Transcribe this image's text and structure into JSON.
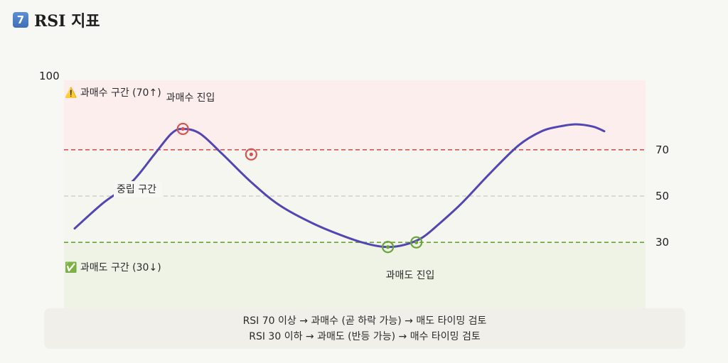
{
  "header": {
    "badge": "7",
    "title": "RSI 지표"
  },
  "chart_data": {
    "type": "line",
    "ylim": [
      0,
      100
    ],
    "top_label": "100",
    "right_ticks": [
      70,
      50,
      30
    ],
    "zones": [
      {
        "from": 70,
        "to": 100,
        "color": "#fdeeee"
      },
      {
        "from": 30,
        "to": 70,
        "color": "#f5f6f0"
      },
      {
        "from": 0,
        "to": 30,
        "color": "#eef3e6"
      }
    ],
    "reference_lines": [
      {
        "value": 70,
        "color": "#d9534f"
      },
      {
        "value": 50,
        "color": "#bdbdb5"
      },
      {
        "value": 30,
        "color": "#6aa33a"
      }
    ],
    "series": [
      {
        "color": "#5246b4",
        "x": [
          0,
          5,
          10,
          14,
          17,
          19,
          22,
          26,
          31,
          36,
          42,
          48,
          52,
          55,
          58,
          61,
          64,
          68,
          73,
          78,
          82,
          85,
          88,
          91,
          93
        ],
        "y": [
          36,
          47,
          56,
          68,
          77,
          79,
          77,
          68,
          56,
          46,
          38,
          32,
          29,
          28,
          29,
          32,
          38,
          47,
          60,
          72,
          78,
          80,
          81,
          80,
          78
        ]
      }
    ],
    "annotations": {
      "overbought_zone": "⚠️ 과매수 구간 (70↑)",
      "neutral_zone": "중립 구간",
      "oversold_zone": "✅ 과매도 구간 (30↓)",
      "overbought_entry": "과매수 진입",
      "oversold_entry": "과매도 진입"
    },
    "markers": [
      {
        "x": 19,
        "y": 79,
        "color": "#d9534f"
      },
      {
        "x": 31,
        "y": 68,
        "color": "#d9534f"
      },
      {
        "x": 55,
        "y": 28,
        "color": "#6aa33a"
      },
      {
        "x": 60,
        "y": 30,
        "color": "#6aa33a"
      }
    ]
  },
  "caption": {
    "line1": "RSI 70 이상 → 과매수 (곧 하락 가능) → 매도 타이밍 검토",
    "line2": "RSI 30 이하 → 과매도 (반등 가능) → 매수 타이밍 검토"
  }
}
